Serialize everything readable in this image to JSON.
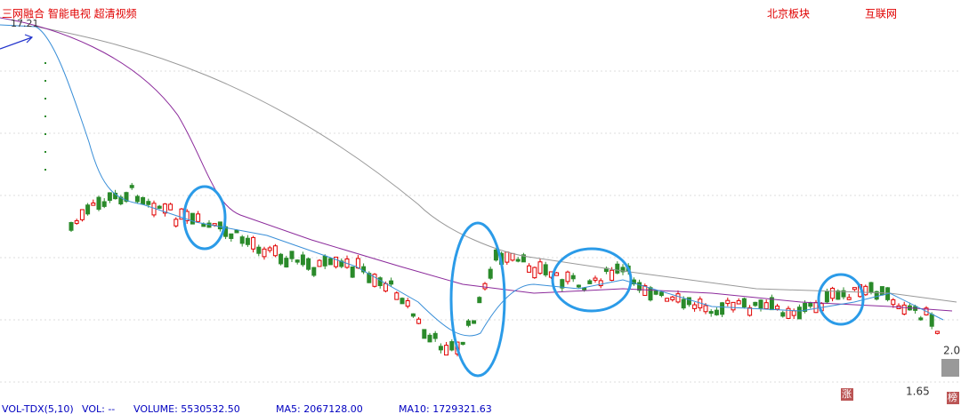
{
  "header": {
    "concepts": "三网融合 智能电视 超清视频",
    "region": "北京板块",
    "industry": "互联网"
  },
  "price_labels": {
    "high": "17.21",
    "mid": "2.0",
    "low": "1.65"
  },
  "side_buttons": {
    "rise": "涨",
    "rank": "榜"
  },
  "indicator": {
    "name": "VOL-TDX(5,10)",
    "vol": "VOL: --",
    "volume": "VOLUME: 5530532.50",
    "ma5": "MA5: 2067128.00",
    "ma10": "MA10: 1729321.63"
  }
}
